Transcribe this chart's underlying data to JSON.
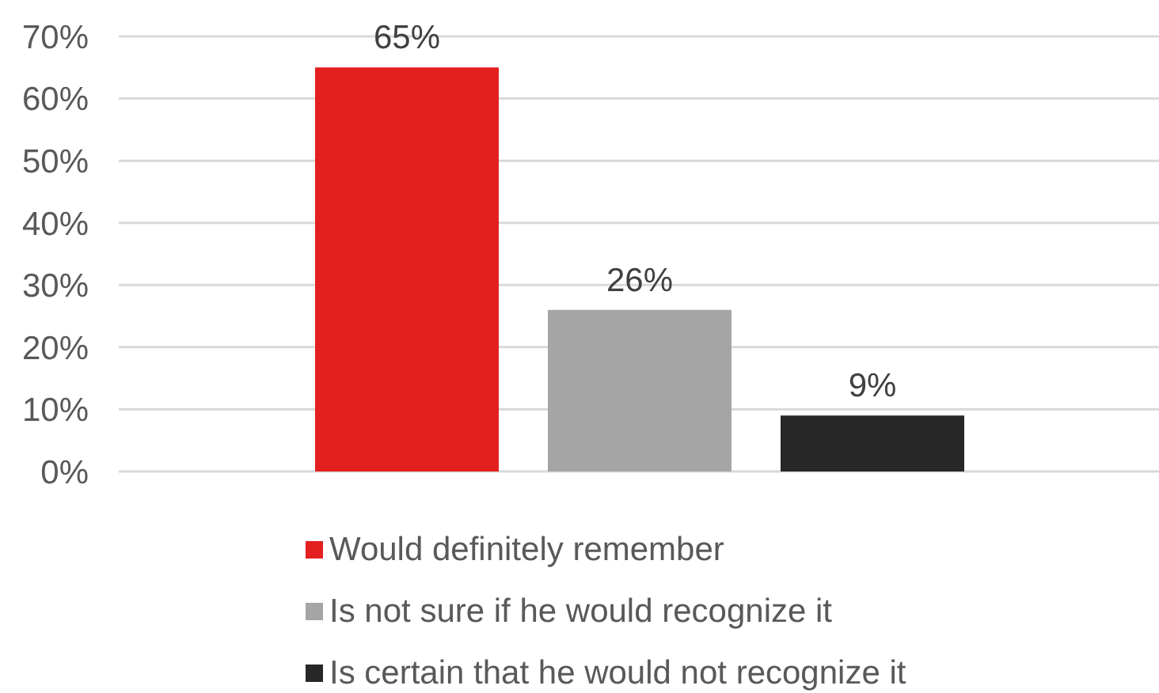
{
  "chart_data": {
    "type": "bar",
    "categories": [
      null
    ],
    "series": [
      {
        "name": "Would definitely remember",
        "color": "#e41f1f",
        "values": [
          65
        ],
        "value_labels": [
          "65%"
        ]
      },
      {
        "name": "Is not sure if he would recognize it",
        "color": "#a5a5a5",
        "values": [
          26
        ],
        "value_labels": [
          "26%"
        ]
      },
      {
        "name": "Is certain that he would not recognize it",
        "color": "#272727",
        "values": [
          9
        ],
        "value_labels": [
          "9%"
        ]
      }
    ],
    "ylim": [
      0,
      70
    ],
    "yticks": [
      {
        "value": 0,
        "label": "0%"
      },
      {
        "value": 10,
        "label": "10%"
      },
      {
        "value": 20,
        "label": "20%"
      },
      {
        "value": 30,
        "label": "30%"
      },
      {
        "value": 40,
        "label": "40%"
      },
      {
        "value": 50,
        "label": "50%"
      },
      {
        "value": 60,
        "label": "60%"
      },
      {
        "value": 70,
        "label": "70%"
      }
    ],
    "grid": "y",
    "legend": "bottom",
    "tick_labels": "y"
  }
}
